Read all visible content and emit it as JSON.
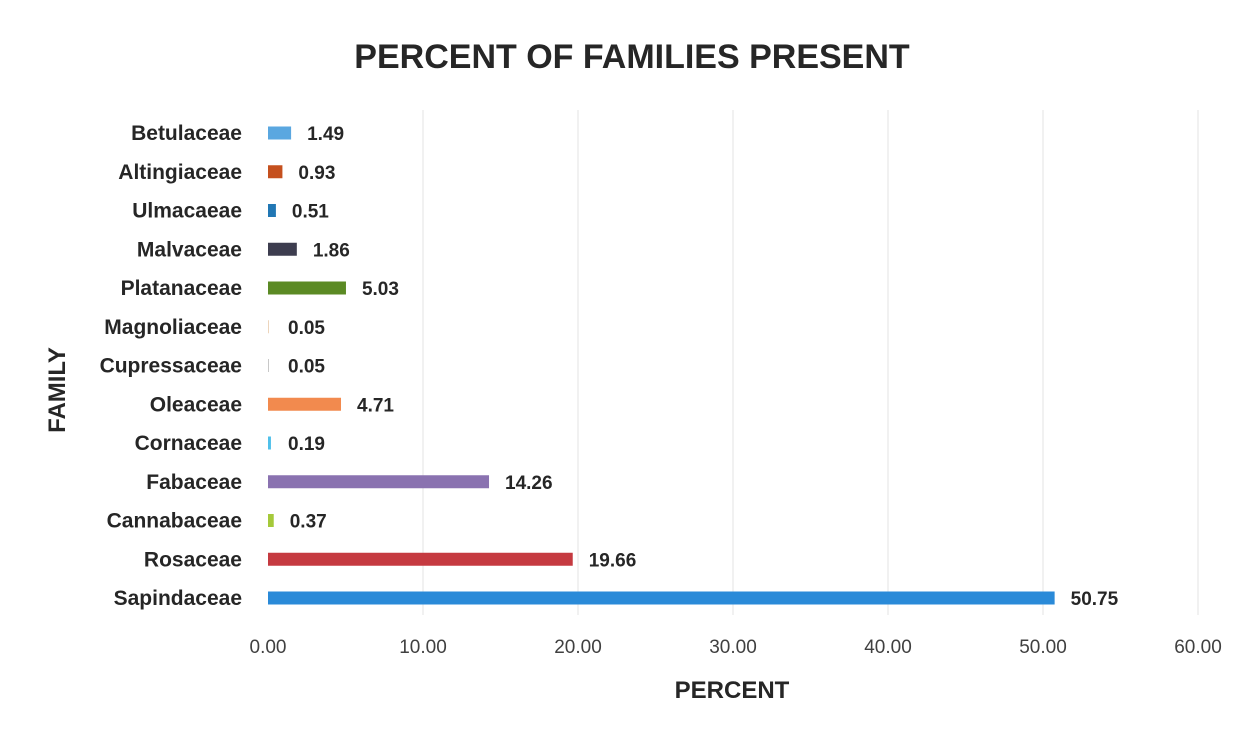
{
  "chart_data": {
    "type": "bar",
    "orientation": "horizontal",
    "title": "PERCENT OF FAMILIES PRESENT",
    "xlabel": "PERCENT",
    "ylabel": "FAMILY",
    "xlim": [
      0,
      60
    ],
    "x_ticks": [
      "0.00",
      "10.00",
      "20.00",
      "30.00",
      "40.00",
      "50.00",
      "60.00"
    ],
    "grid": "vertical",
    "legend": "none",
    "categories": [
      "Betulaceae",
      "Altingiaceae",
      "Ulmacaeae",
      "Malvaceae",
      "Platanaceae",
      "Magnoliaceae",
      "Cupressaceae",
      "Oleaceae",
      "Cornaceae",
      "Fabaceae",
      "Cannabaceae",
      "Rosaceae",
      "Sapindaceae"
    ],
    "values": [
      1.49,
      0.93,
      0.51,
      1.86,
      5.03,
      0.05,
      0.05,
      4.71,
      0.19,
      14.26,
      0.37,
      19.66,
      50.75
    ],
    "data_labels": [
      "1.49",
      "0.93",
      "0.51",
      "1.86",
      "5.03",
      "0.05",
      "0.05",
      "4.71",
      "0.19",
      "14.26",
      "0.37",
      "19.66",
      "50.75"
    ],
    "colors": [
      "#5aa7e0",
      "#c5501e",
      "#2177b4",
      "#3d3d4f",
      "#5b8a24",
      "#e8c9a8",
      "#b8b8b8",
      "#f28a4e",
      "#4fc0ea",
      "#8a72b0",
      "#a5c93a",
      "#c53a40",
      "#2a8ad8"
    ]
  }
}
